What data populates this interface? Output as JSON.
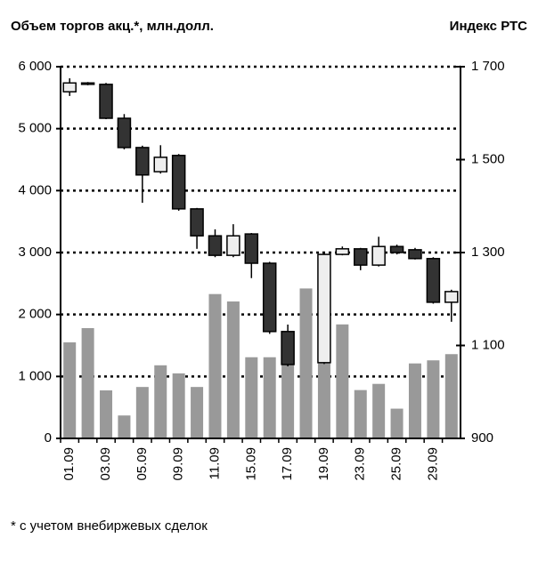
{
  "chart_data": {
    "type": "bar_candlestick",
    "ylabel": "Объем торгов акц.*, млн.долл.",
    "y2label": "Индекс РТС",
    "footnote": "* с учетом внебиржевых сделок",
    "categories": [
      "01.09",
      null,
      "03.09",
      null,
      "05.09",
      null,
      "09.09",
      null,
      "11.09",
      null,
      "15.09",
      null,
      "17.09",
      null,
      "19.09",
      null,
      "23.09",
      null,
      "25.09",
      null,
      "29.09",
      null
    ],
    "ylim": [
      0,
      6000
    ],
    "yticks": [
      0,
      {
        "value": 1000,
        "label": "1 000"
      },
      {
        "value": 2000,
        "label": "2 000"
      },
      {
        "value": 3000,
        "label": "3 000"
      },
      {
        "value": 4000,
        "label": "4 000"
      },
      {
        "value": 5000,
        "label": "5 000"
      },
      {
        "value": 6000,
        "label": "6 000"
      }
    ],
    "y2lim": [
      900,
      1700
    ],
    "y2ticks": [
      900,
      {
        "value": 1100,
        "label": "1 100"
      },
      {
        "value": 1300,
        "label": "1 300"
      },
      {
        "value": 1500,
        "label": "1 500"
      },
      {
        "value": 1700,
        "label": "1 700"
      }
    ],
    "grid": true,
    "series": [
      {
        "type": "bar",
        "color": "#999999",
        "values": [
          1550,
          1780,
          775,
          370,
          830,
          1180,
          1050,
          830,
          2330,
          2210,
          1310,
          1310,
          1200,
          2420,
          1300,
          1840,
          780,
          880,
          480,
          1210,
          1260,
          1360
        ]
      },
      {
        "type": "candlestick",
        "axis": "y2",
        "up_color": "#eeeeee",
        "down_color": "#333333",
        "edge_color": "#000000",
        "open": [
          1646,
          1662,
          1662,
          1589,
          1526,
          1474,
          1509,
          1394,
          1336,
          1294,
          1340,
          1277,
          1130,
          null,
          1063,
          1296,
          1308,
          1273,
          1313,
          1306,
          1287,
          1193
        ],
        "high": [
          1675,
          1667,
          1665,
          1598,
          1530,
          1531,
          1512,
          1396,
          1350,
          1361,
          1342,
          1280,
          1145,
          null,
          1298,
          1313,
          1310,
          1334,
          1317,
          1310,
          1290,
          1220
        ],
        "low": [
          1637,
          1660,
          1587,
          1522,
          1407,
          1470,
          1390,
          1308,
          1290,
          1290,
          1245,
          1125,
          1055,
          null,
          1060,
          1294,
          1262,
          1270,
          1296,
          1285,
          1190,
          1151
        ],
        "close": [
          1665,
          1665,
          1589,
          1526,
          1467,
          1505,
          1394,
          1336,
          1294,
          1336,
          1277,
          1130,
          1059,
          null,
          1296,
          1308,
          1273,
          1313,
          1300,
          1287,
          1193,
          1216
        ]
      }
    ]
  }
}
